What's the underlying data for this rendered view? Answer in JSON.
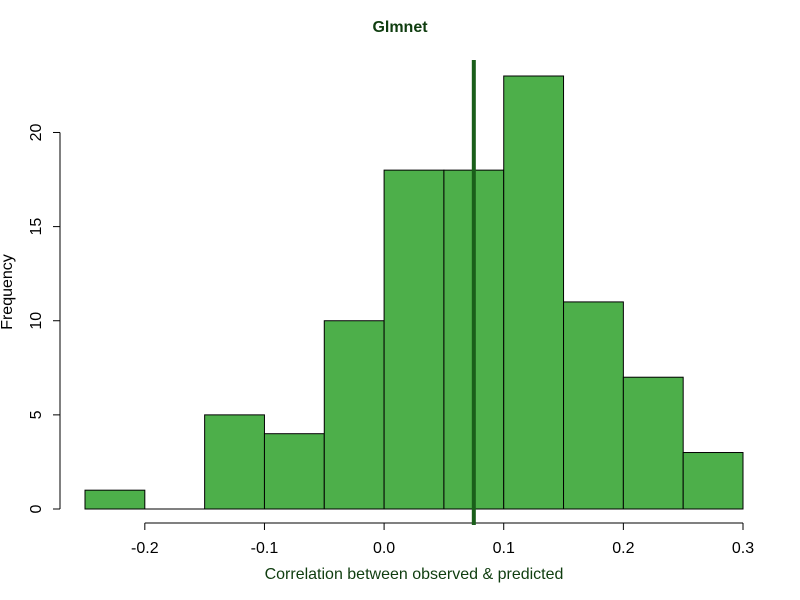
{
  "chart_data": {
    "type": "bar",
    "title": "Glmnet",
    "xlabel": "Correlation between observed & predicted",
    "ylabel": "Frequency",
    "bins": [
      {
        "start": -0.25,
        "end": -0.2,
        "count": 1
      },
      {
        "start": -0.2,
        "end": -0.15,
        "count": 0
      },
      {
        "start": -0.15,
        "end": -0.1,
        "count": 5
      },
      {
        "start": -0.1,
        "end": -0.05,
        "count": 4
      },
      {
        "start": -0.05,
        "end": 0.0,
        "count": 10
      },
      {
        "start": 0.0,
        "end": 0.05,
        "count": 18
      },
      {
        "start": 0.05,
        "end": 0.1,
        "count": 18
      },
      {
        "start": 0.1,
        "end": 0.15,
        "count": 23
      },
      {
        "start": 0.15,
        "end": 0.2,
        "count": 11
      },
      {
        "start": 0.2,
        "end": 0.25,
        "count": 7
      },
      {
        "start": 0.25,
        "end": 0.3,
        "count": 3
      }
    ],
    "xlim": [
      -0.25,
      0.3
    ],
    "ylim": [
      0,
      23
    ],
    "xticks": [
      "-0.2",
      "-0.1",
      "0.0",
      "0.1",
      "0.2",
      "0.3"
    ],
    "yticks": [
      "0",
      "5",
      "10",
      "15",
      "20"
    ],
    "vline": 0.075,
    "colors": {
      "bar": "#4daf4a",
      "vline": "#1a5e1a",
      "title": "#0f3d0f"
    }
  }
}
